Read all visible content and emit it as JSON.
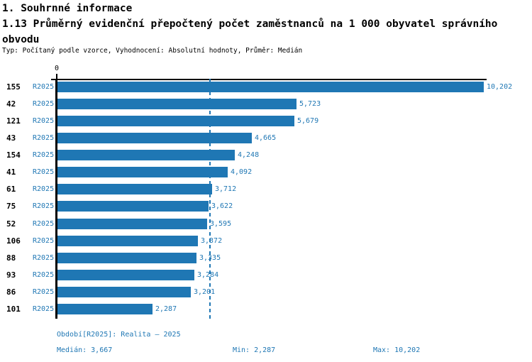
{
  "header": {
    "section_title": "1. Souhrnné informace",
    "chart_title": "1.13 Průměrný evidenční přepočtený počet zaměstnanců na 1 000 obyvatel správního obvodu",
    "subtitle": "Typ: Počítaný podle vzorce, Vyhodnocení: Absolutní hodnoty, Průměr: Medián"
  },
  "chart_data": {
    "type": "bar",
    "orientation": "horizontal",
    "categories": [
      "155",
      "42",
      "121",
      "43",
      "154",
      "41",
      "61",
      "75",
      "52",
      "106",
      "88",
      "93",
      "86",
      "101"
    ],
    "series_name": "R2025",
    "values": [
      10202,
      5723,
      5679,
      4665,
      4248,
      4092,
      3712,
      3622,
      3595,
      3372,
      3335,
      3284,
      3201,
      2287
    ],
    "value_labels": [
      "10,202",
      "5,723",
      "5,679",
      "4,665",
      "4,248",
      "4,092",
      "3,712",
      "3,622",
      "3,595",
      "3,372",
      "3,335",
      "3,284",
      "3,201",
      "2,287"
    ],
    "x_axis": {
      "tick_labels": [
        "0"
      ],
      "xlim": [
        0,
        10270
      ]
    },
    "median_line_value": 3667,
    "stats": {
      "median": 3667,
      "min": 2287,
      "max": 10202
    },
    "grid": false,
    "legend": "none"
  },
  "footer": {
    "period_label": "Období[R2025]: Realita – 2025",
    "median_label": "Medián: 3,667",
    "min_label": "Min: 2,287",
    "max_label": "Max: 10,202"
  },
  "colors": {
    "bar": "#1f77b4",
    "blue_text": "#1f77b4",
    "axis": "#000000",
    "background": "#ffffff"
  }
}
